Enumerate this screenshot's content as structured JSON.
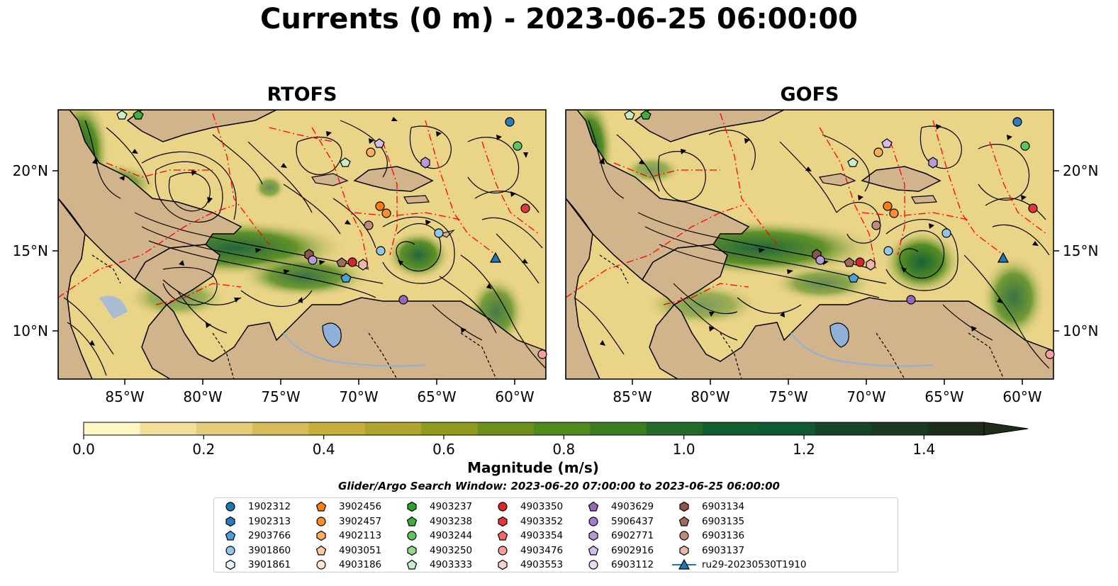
{
  "title": "Currents (0 m) - 2023-06-25 06:00:00",
  "panels": [
    {
      "title": "RTOFS"
    },
    {
      "title": "GOFS"
    }
  ],
  "lat_labels": [
    "20°N",
    "15°N",
    "10°N"
  ],
  "lon_labels": [
    "85°W",
    "80°W",
    "75°W",
    "70°W",
    "65°W",
    "60°W"
  ],
  "colorbar": {
    "label": "Magnitude (m/s)",
    "ticks": [
      "0.0",
      "0.2",
      "0.4",
      "0.6",
      "0.8",
      "1.0",
      "1.2",
      "1.4"
    ],
    "colors": [
      "#fdf8c3",
      "#f0e09a",
      "#e3cc7a",
      "#d6bb58",
      "#c8ae3b",
      "#aea62b",
      "#8e9b1c",
      "#6d9219",
      "#4f8a1e",
      "#3b7d20",
      "#226b2c",
      "#115e30",
      "#0f5a32",
      "#164427",
      "#1c3a20",
      "#1e2d18"
    ],
    "extend": "max"
  },
  "search_window": "Glider/Argo Search Window: 2023-06-20 07:00:00 to 2023-06-25 06:00:00",
  "colors": {
    "land": "#d2b48c",
    "lake": "#8fb0d8",
    "water_low": "#e9d488",
    "eez_line": "#ff0000",
    "streamline": "#000000"
  },
  "legend": [
    {
      "id": "1902312",
      "shape": "circle",
      "color": "#1f77b4"
    },
    {
      "id": "1902313",
      "shape": "hexagon",
      "color": "#2d7bbf"
    },
    {
      "id": "2903766",
      "shape": "pentagon",
      "color": "#4f9fd8"
    },
    {
      "id": "3901860",
      "shape": "circle",
      "color": "#8fc7ea"
    },
    {
      "id": "3901861",
      "shape": "hexagon",
      "color": "#e6f3fb"
    },
    {
      "id": "3902456",
      "shape": "pentagon",
      "color": "#ff7f0e"
    },
    {
      "id": "3902457",
      "shape": "circle",
      "color": "#ff8c2a"
    },
    {
      "id": "4902113",
      "shape": "hexagon",
      "color": "#ffae5c"
    },
    {
      "id": "4903051",
      "shape": "pentagon",
      "color": "#ffcc99"
    },
    {
      "id": "4903186",
      "shape": "circle",
      "color": "#ffe6cc"
    },
    {
      "id": "4903237",
      "shape": "hexagon",
      "color": "#2ca02c"
    },
    {
      "id": "4903238",
      "shape": "pentagon",
      "color": "#3fae3f"
    },
    {
      "id": "4903244",
      "shape": "circle",
      "color": "#5cc65c"
    },
    {
      "id": "4903250",
      "shape": "hexagon",
      "color": "#8fdc8f"
    },
    {
      "id": "4903333",
      "shape": "pentagon",
      "color": "#c8f0c8"
    },
    {
      "id": "4903350",
      "shape": "circle",
      "color": "#d62728"
    },
    {
      "id": "4903352",
      "shape": "hexagon",
      "color": "#e0383a"
    },
    {
      "id": "4903354",
      "shape": "pentagon",
      "color": "#f06a6b"
    },
    {
      "id": "4903476",
      "shape": "circle",
      "color": "#f4a0a0"
    },
    {
      "id": "4903553",
      "shape": "hexagon",
      "color": "#fbd0d0"
    },
    {
      "id": "4903629",
      "shape": "pentagon",
      "color": "#9467bd"
    },
    {
      "id": "5906437",
      "shape": "circle",
      "color": "#a27ccb"
    },
    {
      "id": "6902771",
      "shape": "hexagon",
      "color": "#b89ad8"
    },
    {
      "id": "6902916",
      "shape": "pentagon",
      "color": "#d4bdea"
    },
    {
      "id": "6903112",
      "shape": "circle",
      "color": "#ead9f5"
    },
    {
      "id": "6903134",
      "shape": "hexagon",
      "color": "#8c564b"
    },
    {
      "id": "6903135",
      "shape": "pentagon",
      "color": "#a06a5c"
    },
    {
      "id": "6903136",
      "shape": "circle",
      "color": "#c08a7c"
    },
    {
      "id": "6903137",
      "shape": "hexagon",
      "color": "#e8b8a8"
    },
    {
      "id": "ru29-20230530T1910",
      "shape": "triangle-line",
      "color": "#1f77b4"
    }
  ]
}
